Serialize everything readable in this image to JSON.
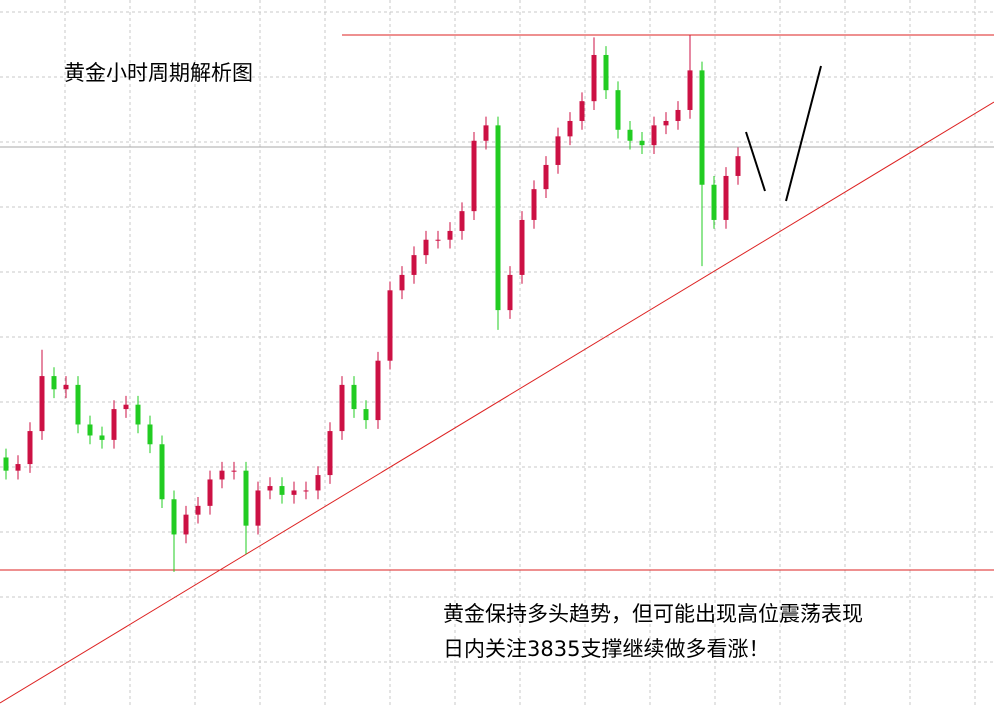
{
  "chart_data": {
    "type": "candlestick",
    "title": "黄金小时周期解析图",
    "annotation": [
      "黄金保持多头趋势，但可能出现高位震荡表现",
      "日内关注3835支撑继续做多看涨！"
    ],
    "ylim": [
      3607,
      3928
    ],
    "up_color": "#cc1144",
    "down_color": "#22cc22",
    "open": [
      3720,
      3714,
      3717,
      3732,
      3757,
      3751,
      3753,
      3735,
      3730,
      3728,
      3742,
      3744,
      3735,
      3726,
      3701,
      3685,
      3694,
      3698,
      3710,
      3714,
      3714,
      3689,
      3705,
      3707,
      3703,
      3705,
      3705,
      3712,
      3732,
      3753,
      3742,
      3737,
      3764,
      3796,
      3803,
      3812,
      3819,
      3819,
      3823,
      3832,
      3864,
      3871,
      3787,
      3803,
      3828,
      3842,
      3853,
      3866,
      3873,
      3882,
      3903,
      3887,
      3869,
      3864,
      3862,
      3871,
      3873,
      3878,
      3896,
      3844,
      3828,
      3848
    ],
    "high": [
      3724,
      3721,
      3736,
      3769,
      3761,
      3757,
      3757,
      3739,
      3734,
      3746,
      3748,
      3748,
      3739,
      3730,
      3705,
      3698,
      3702,
      3714,
      3718,
      3718,
      3718,
      3709,
      3711,
      3711,
      3709,
      3709,
      3716,
      3736,
      3757,
      3757,
      3746,
      3768,
      3800,
      3807,
      3816,
      3823,
      3823,
      3827,
      3836,
      3868,
      3875,
      3875,
      3807,
      3832,
      3846,
      3857,
      3870,
      3877,
      3886,
      3911,
      3907,
      3891,
      3873,
      3868,
      3875,
      3877,
      3882,
      3912,
      3900,
      3848,
      3852,
      3861
    ],
    "low": [
      3710,
      3710,
      3713,
      3728,
      3747,
      3747,
      3731,
      3726,
      3724,
      3724,
      3738,
      3731,
      3722,
      3697,
      3668,
      3681,
      3690,
      3694,
      3706,
      3710,
      3676,
      3685,
      3701,
      3699,
      3699,
      3701,
      3701,
      3708,
      3728,
      3738,
      3733,
      3733,
      3760,
      3792,
      3799,
      3808,
      3815,
      3815,
      3819,
      3828,
      3860,
      3778,
      3783,
      3799,
      3824,
      3838,
      3849,
      3862,
      3869,
      3878,
      3883,
      3865,
      3860,
      3858,
      3858,
      3867,
      3869,
      3874,
      3807,
      3824,
      3824,
      3844
    ],
    "close": [
      3714,
      3717,
      3732,
      3757,
      3751,
      3753,
      3735,
      3730,
      3728,
      3742,
      3744,
      3735,
      3726,
      3701,
      3685,
      3694,
      3698,
      3710,
      3714,
      3714,
      3689,
      3705,
      3707,
      3703,
      3705,
      3705,
      3712,
      3732,
      3753,
      3742,
      3737,
      3764,
      3796,
      3803,
      3812,
      3819,
      3819,
      3823,
      3832,
      3864,
      3871,
      3787,
      3803,
      3828,
      3842,
      3853,
      3866,
      3873,
      3882,
      3903,
      3887,
      3869,
      3864,
      3862,
      3871,
      3873,
      3878,
      3896,
      3844,
      3828,
      3848,
      3857
    ]
  }
}
